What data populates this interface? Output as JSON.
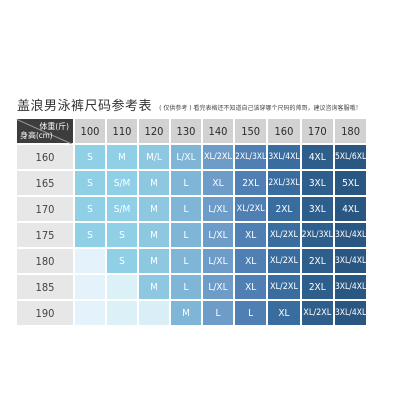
{
  "title": "盖浪男泳裤尺码参考表",
  "subtitle": "( 仅供参考 ) 看完表格还不知道自己该穿哪个尺码的帅哥，建议咨询客服哦！",
  "table": {
    "corner_weight_label": "体重(斤)",
    "corner_height_label": "身高(cm)",
    "weights": [
      "100",
      "110",
      "120",
      "130",
      "140",
      "150",
      "160",
      "170",
      "180"
    ],
    "rows": [
      {
        "height": "160",
        "cells": [
          "S",
          "M",
          "M/L",
          "L/XL",
          "XL/2XL",
          "2XL/3XL",
          "3XL/4XL",
          "4XL",
          "5XL/6XL"
        ]
      },
      {
        "height": "165",
        "cells": [
          "S",
          "S/M",
          "M",
          "L",
          "XL",
          "2XL",
          "2XL/3XL",
          "3XL",
          "5XL"
        ]
      },
      {
        "height": "170",
        "cells": [
          "S",
          "S/M",
          "M",
          "L",
          "L/XL",
          "XL/2XL",
          "2XL",
          "3XL",
          "4XL"
        ]
      },
      {
        "height": "175",
        "cells": [
          "S",
          "S",
          "M",
          "L",
          "L/XL",
          "XL",
          "XL/2XL",
          "2XL/3XL",
          "3XL/4XL"
        ]
      },
      {
        "height": "180",
        "cells": [
          "",
          "S",
          "M",
          "L",
          "L/XL",
          "XL",
          "XL/2XL",
          "2XL",
          "3XL/4XL"
        ]
      },
      {
        "height": "185",
        "cells": [
          "",
          "",
          "M",
          "L",
          "L/XL",
          "XL",
          "XL/2XL",
          "2XL",
          "3XL/4XL"
        ]
      },
      {
        "height": "190",
        "cells": [
          "",
          "",
          "",
          "M",
          "L",
          "L",
          "XL",
          "XL/2XL",
          "3XL/4XL"
        ]
      }
    ],
    "column_colors": [
      "#8fd0e6",
      "#8fd0e6",
      "#8dc7e0",
      "#7fb6d7",
      "#6d9cc9",
      "#4f7fb3",
      "#3a6d9f",
      "#2d5e8c",
      "#2a5682"
    ],
    "blank_colors": [
      "#e4f3fb",
      "#dcf0f8",
      "#d9eef7"
    ],
    "text_colors": [
      "#ffffff",
      "#ffffff",
      "#ffffff",
      "#ffffff",
      "#ffffff",
      "#ffffff",
      "#ffffff",
      "#ffffff",
      "#ffffff"
    ]
  }
}
